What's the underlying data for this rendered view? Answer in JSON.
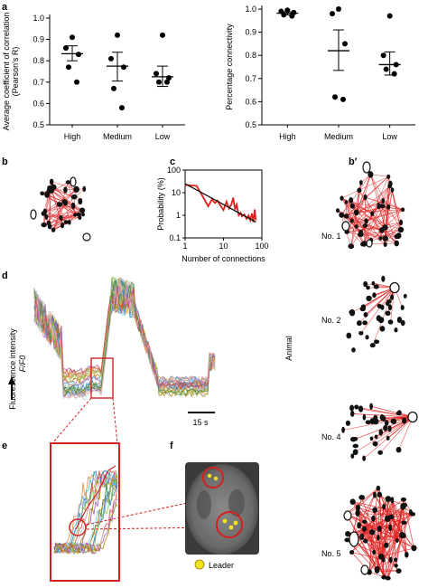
{
  "panels": {
    "a": "a",
    "b": "b",
    "b_prime": "b′",
    "c": "c",
    "d": "d",
    "e": "e",
    "f": "f"
  },
  "colors": {
    "network_edge": "#e02020",
    "node": "#111111",
    "trace_highlight": "#d42020",
    "leader": "#f5e21a"
  },
  "chart_data": [
    {
      "id": "corr",
      "type": "scatter",
      "ylabel": "Average coefficient of correlation",
      "ylabel2": "(Pearson's R)",
      "categories": [
        "High",
        "Medium",
        "Low"
      ],
      "ylim": [
        0.5,
        1.0
      ],
      "yticks": [
        0.5,
        0.6,
        0.7,
        0.8,
        0.9,
        1.0
      ],
      "groups": [
        {
          "category": "High",
          "mean": 0.833,
          "sem_low": 0.8,
          "sem_high": 0.87,
          "points": [
            0.91,
            0.86,
            0.83,
            0.77,
            0.7
          ]
        },
        {
          "category": "Medium",
          "mean": 0.775,
          "sem_low": 0.705,
          "sem_high": 0.84,
          "points": [
            0.92,
            0.81,
            0.77,
            0.67,
            0.58
          ]
        },
        {
          "category": "Low",
          "mean": 0.725,
          "sem_low": 0.68,
          "sem_high": 0.775,
          "points": [
            0.92,
            0.74,
            0.72,
            0.7,
            0.7
          ]
        }
      ]
    },
    {
      "id": "conn",
      "type": "scatter",
      "ylabel": "Percentage connectivity",
      "categories": [
        "High",
        "Medium",
        "Low"
      ],
      "ylim": [
        0.5,
        1.0
      ],
      "yticks": [
        0.5,
        0.6,
        0.7,
        0.8,
        0.9,
        1.0
      ],
      "groups": [
        {
          "category": "High",
          "mean": 0.982,
          "sem_low": 0.975,
          "sem_high": 0.988,
          "points": [
            0.995,
            0.99,
            0.985,
            0.975,
            0.97
          ]
        },
        {
          "category": "Medium",
          "mean": 0.82,
          "sem_low": 0.735,
          "sem_high": 0.91,
          "points": [
            1.0,
            0.98,
            0.85,
            0.62,
            0.61
          ]
        },
        {
          "category": "Low",
          "mean": 0.76,
          "sem_low": 0.715,
          "sem_high": 0.815,
          "points": [
            0.97,
            0.8,
            0.76,
            0.74,
            0.72
          ]
        }
      ]
    },
    {
      "id": "degree",
      "type": "line",
      "xlabel": "Number of connections",
      "ylabel": "Probability (%)",
      "xscale": "log",
      "yscale": "log",
      "xlim": [
        1,
        100
      ],
      "ylim": [
        0.1,
        100
      ],
      "xtick_labels": [
        "1",
        "10",
        "100"
      ],
      "ytick_labels": [
        "0.1",
        "1",
        "10",
        "100"
      ],
      "series": [
        {
          "color": "#e02020",
          "x": [
            1,
            2,
            3,
            4,
            5,
            6,
            7,
            8,
            10,
            12,
            14,
            16,
            18,
            20,
            22,
            25,
            28,
            30,
            35,
            40,
            45,
            50,
            55,
            60,
            65,
            70
          ],
          "y": [
            22,
            20,
            6,
            2.5,
            5,
            3.5,
            4.5,
            3,
            1.7,
            4,
            2,
            3,
            6,
            1.8,
            3,
            1,
            1.3,
            0.9,
            1.1,
            0.7,
            1.0,
            0.6,
            1.2,
            0.5,
            1.8,
            0.6
          ]
        },
        {
          "color": "#111111",
          "x": [
            1,
            70
          ],
          "y": [
            25,
            0.5
          ]
        }
      ]
    }
  ],
  "traces": {
    "ylabel": "Fluorescence intensity",
    "ylabel2": "F/F0",
    "scalebar": "15 s"
  },
  "networks": {
    "side_label": "Animal",
    "animals": [
      "No. 1",
      "No. 2",
      "No. 4",
      "No. 5"
    ]
  },
  "legend_f": {
    "leader": "Leader"
  }
}
